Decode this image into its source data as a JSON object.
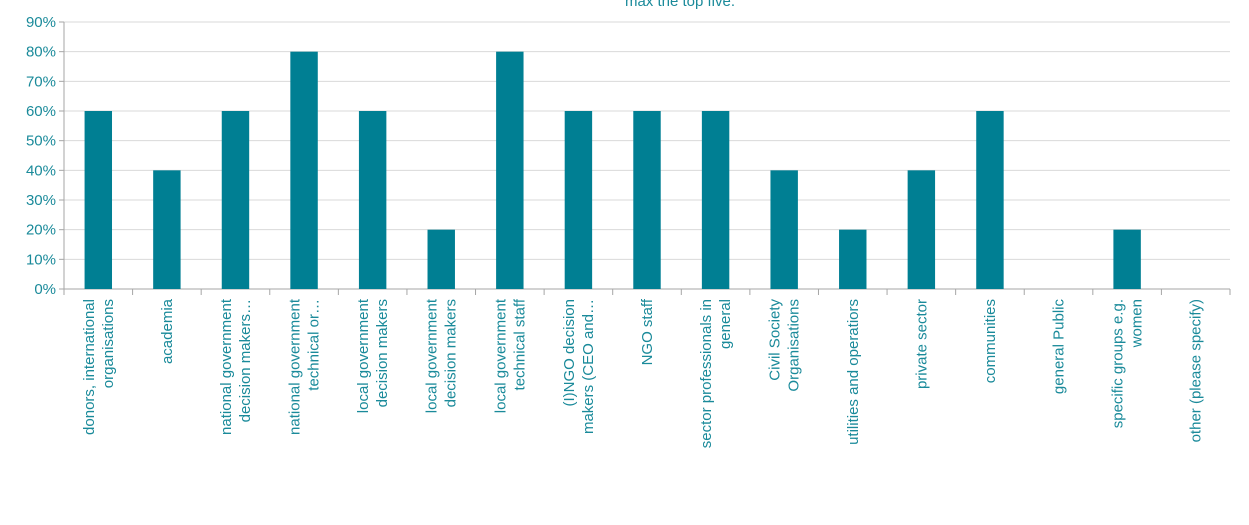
{
  "chart_data": {
    "type": "bar",
    "title": "max the top five.",
    "xlabel": "",
    "ylabel": "",
    "ylim": [
      0,
      90
    ],
    "y_ticks": [
      "0%",
      "10%",
      "20%",
      "30%",
      "40%",
      "50%",
      "60%",
      "70%",
      "80%",
      "90%"
    ],
    "grid": true,
    "legend": "none",
    "bar_color": "#007f93",
    "categories": [
      [
        "donors, international",
        "organisations"
      ],
      [
        "academia"
      ],
      [
        "national government",
        "decision makers…"
      ],
      [
        "national government",
        "technical or…"
      ],
      [
        "local government",
        "decision makers"
      ],
      [
        "local government",
        "decision makers"
      ],
      [
        "local government",
        "technical staff"
      ],
      [
        "(I)NGO decision",
        "makers (CEO and…"
      ],
      [
        "NGO staff"
      ],
      [
        "sector professionals in",
        "general"
      ],
      [
        "Civil Society",
        "Organisations"
      ],
      [
        "utilities and operatiors"
      ],
      [
        "private sector"
      ],
      [
        "communities"
      ],
      [
        "general Public"
      ],
      [
        "specific groups e.g.",
        "women"
      ],
      [
        "other (please specify)"
      ]
    ],
    "values": [
      60,
      40,
      60,
      80,
      60,
      20,
      80,
      60,
      60,
      60,
      40,
      20,
      40,
      60,
      0,
      20,
      0
    ]
  }
}
